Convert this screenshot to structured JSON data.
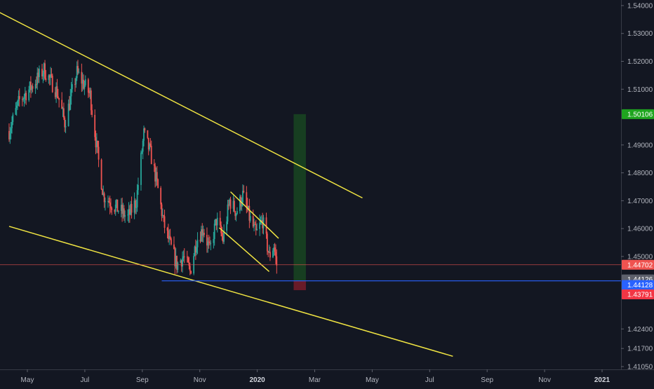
{
  "colors": {
    "background": "#131722",
    "candle_up": "#26a69a",
    "candle_down": "#ef5350",
    "trendline": "#f0e442",
    "horizontal_line": "#2962ff",
    "current_price_line": "#ef5350",
    "target_zone": "#1b5e20",
    "stop_zone": "#7f1d2a",
    "axis_text": "#b2b5be"
  },
  "chart_data": {
    "type": "candlestick",
    "y_axis": {
      "ticks": [
        "1.54000",
        "1.53000",
        "1.52000",
        "1.51000",
        "1.49000",
        "1.48000",
        "1.47000",
        "1.46000",
        "1.45000",
        "1.42400",
        "1.41700",
        "1.41050"
      ],
      "hidden_ticks": [
        "1.50000",
        "1.43200"
      ],
      "ylim": [
        1.4095,
        1.542
      ]
    },
    "x_axis": {
      "ticks": [
        {
          "label": "May",
          "bold": false
        },
        {
          "label": "Jul",
          "bold": false
        },
        {
          "label": "Sep",
          "bold": false
        },
        {
          "label": "Nov",
          "bold": false
        },
        {
          "label": "2020",
          "bold": true
        },
        {
          "label": "Mar",
          "bold": false
        },
        {
          "label": "May",
          "bold": false
        },
        {
          "label": "Jul",
          "bold": false
        },
        {
          "label": "Sep",
          "bold": false
        },
        {
          "label": "Nov",
          "bold": false
        },
        {
          "label": "2021",
          "bold": true
        }
      ]
    },
    "price_labels": [
      {
        "text": "1.50106",
        "value": 1.50106,
        "color": "#1fa51f",
        "text_color": "#ffffff"
      },
      {
        "text": "1.44702",
        "value": 1.44702,
        "color": "#ef5350",
        "text_color": "#ffffff"
      },
      {
        "text": "1.44126",
        "value": 1.44126,
        "color": "#5d606b",
        "text_color": "#ffffff"
      },
      {
        "text": "1.44128",
        "value": 1.44128,
        "color": "#2962ff",
        "text_color": "#ffffff"
      },
      {
        "text": "1.43791",
        "value": 1.43791,
        "color": "#f23645",
        "text_color": "#ffffff"
      }
    ],
    "horizontal_line": {
      "value": 1.44126,
      "start": "2019-09-10"
    },
    "current_price": 1.44702,
    "position": {
      "start": "2020-01-28",
      "end": "2020-02-10",
      "entry": 1.44126,
      "target": 1.50106,
      "stop": 1.43791
    },
    "trendlines": [
      {
        "name": "upper-channel",
        "from": [
          "2019-02-20",
          1.5427
        ],
        "to": [
          "2020-04-10",
          1.471
        ]
      },
      {
        "name": "lower-channel",
        "from": [
          "2019-04-01",
          1.4608
        ],
        "to": [
          "2020-07-15",
          1.4142
        ]
      },
      {
        "name": "wedge-upper",
        "from": [
          "2019-11-22",
          1.4732
        ],
        "to": [
          "2020-01-12",
          1.4565
        ]
      },
      {
        "name": "wedge-lower",
        "from": [
          "2019-11-10",
          1.4603
        ],
        "to": [
          "2020-01-02",
          1.4446
        ]
      }
    ],
    "candles": {
      "start": "2019-04-01",
      "end": "2020-01-10",
      "waypoints": [
        [
          "2019-04-01",
          1.495
        ],
        [
          "2019-04-12",
          1.506
        ],
        [
          "2019-04-25",
          1.511
        ],
        [
          "2019-05-08",
          1.517
        ],
        [
          "2019-05-22",
          1.509
        ],
        [
          "2019-05-30",
          1.498
        ],
        [
          "2019-06-12",
          1.516
        ],
        [
          "2019-06-26",
          1.508
        ],
        [
          "2019-07-03",
          1.489
        ],
        [
          "2019-07-10",
          1.472
        ],
        [
          "2019-07-22",
          1.468
        ],
        [
          "2019-08-05",
          1.464
        ],
        [
          "2019-08-14",
          1.47
        ],
        [
          "2019-08-22",
          1.494
        ],
        [
          "2019-08-29",
          1.487
        ],
        [
          "2019-09-05",
          1.476
        ],
        [
          "2019-09-12",
          1.462
        ],
        [
          "2019-09-19",
          1.454
        ],
        [
          "2019-09-26",
          1.447
        ],
        [
          "2019-10-03",
          1.45
        ],
        [
          "2019-10-10",
          1.4445
        ],
        [
          "2019-10-17",
          1.456
        ],
        [
          "2019-10-24",
          1.46
        ],
        [
          "2019-10-31",
          1.452
        ],
        [
          "2019-11-07",
          1.463
        ],
        [
          "2019-11-14",
          1.456
        ],
        [
          "2019-11-21",
          1.47
        ],
        [
          "2019-11-28",
          1.466
        ],
        [
          "2019-12-05",
          1.472
        ],
        [
          "2019-12-12",
          1.464
        ],
        [
          "2019-12-19",
          1.458
        ],
        [
          "2019-12-26",
          1.463
        ],
        [
          "2020-01-02",
          1.45
        ],
        [
          "2020-01-07",
          1.454
        ],
        [
          "2020-01-10",
          1.447
        ]
      ]
    }
  }
}
